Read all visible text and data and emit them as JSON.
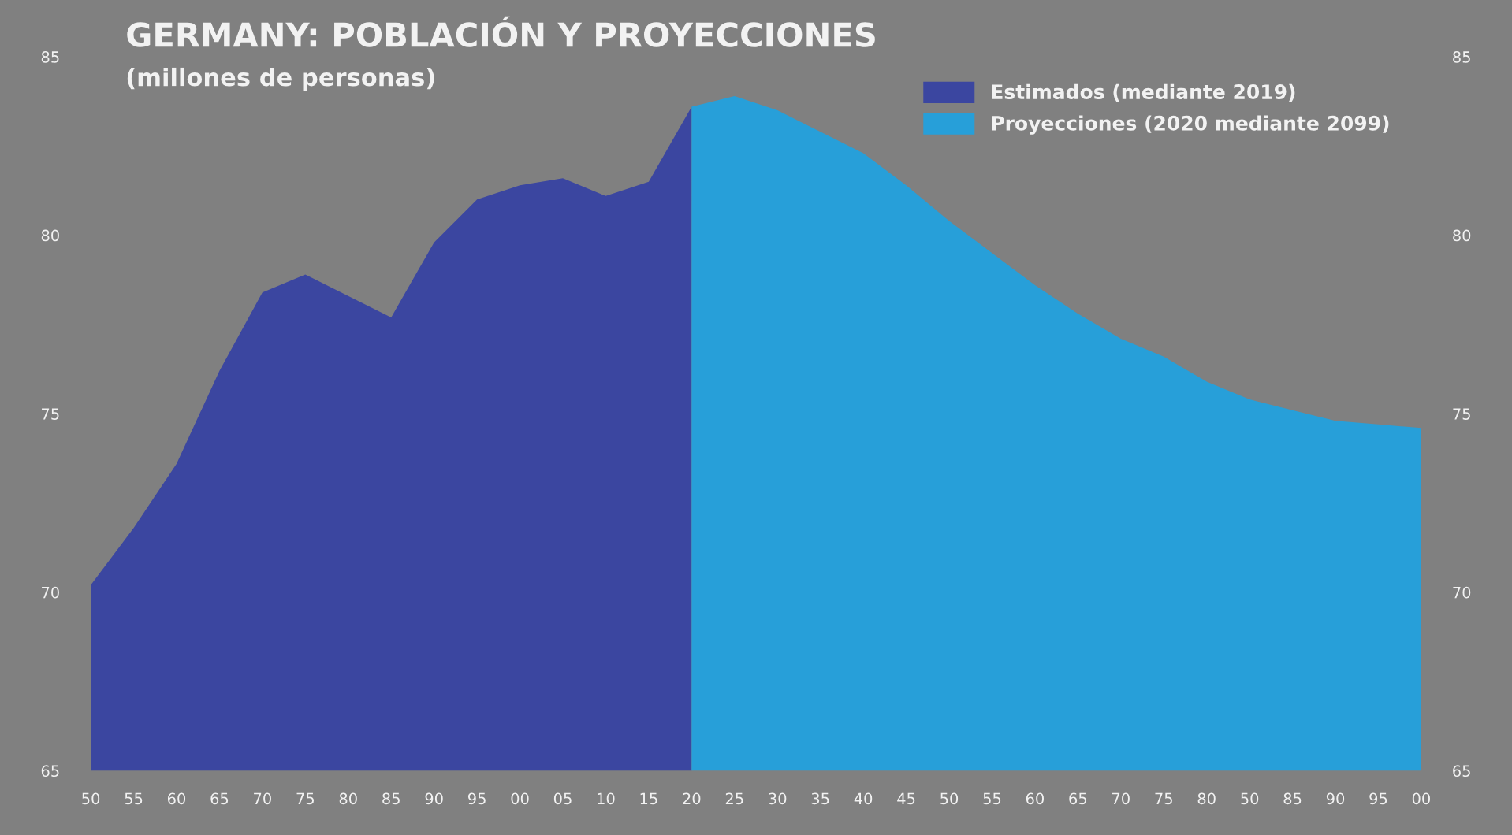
{
  "chart_data": {
    "type": "area",
    "title": "GERMANY: POBLACIÓN Y PROYECCIONES",
    "subtitle": "(millones de personas)",
    "categories": [
      "50",
      "55",
      "60",
      "65",
      "70",
      "75",
      "80",
      "85",
      "90",
      "95",
      "00",
      "05",
      "10",
      "15",
      "20",
      "25",
      "30",
      "35",
      "40",
      "45",
      "50",
      "55",
      "60",
      "65",
      "70",
      "75",
      "80",
      "50",
      "85",
      "90",
      "95",
      "00"
    ],
    "series": [
      {
        "name": "Estimados (mediante 2019)",
        "color": "#3b46a0",
        "values": [
          70.2,
          71.8,
          73.6,
          76.2,
          78.4,
          78.9,
          78.3,
          77.7,
          79.8,
          81.0,
          81.4,
          81.6,
          81.1,
          81.5,
          83.6,
          null,
          null,
          null,
          null,
          null,
          null,
          null,
          null,
          null,
          null,
          null,
          null,
          null,
          null,
          null,
          null,
          null
        ]
      },
      {
        "name": "Proyecciones (2020 mediante 2099)",
        "color": "#279fd9",
        "values": [
          null,
          null,
          null,
          null,
          null,
          null,
          null,
          null,
          null,
          null,
          null,
          null,
          null,
          null,
          83.6,
          83.9,
          83.5,
          82.9,
          82.3,
          81.4,
          80.4,
          79.5,
          78.6,
          77.8,
          77.1,
          76.6,
          75.9,
          75.4,
          75.1,
          74.8,
          74.7,
          74.6
        ]
      }
    ],
    "ylim": [
      65,
      85
    ],
    "yticks": [
      65,
      70,
      75,
      80,
      85
    ],
    "y2lim": [
      65,
      85
    ],
    "y2ticks": [
      65,
      70,
      75,
      80,
      85
    ],
    "grid": false,
    "legend": "top right"
  }
}
